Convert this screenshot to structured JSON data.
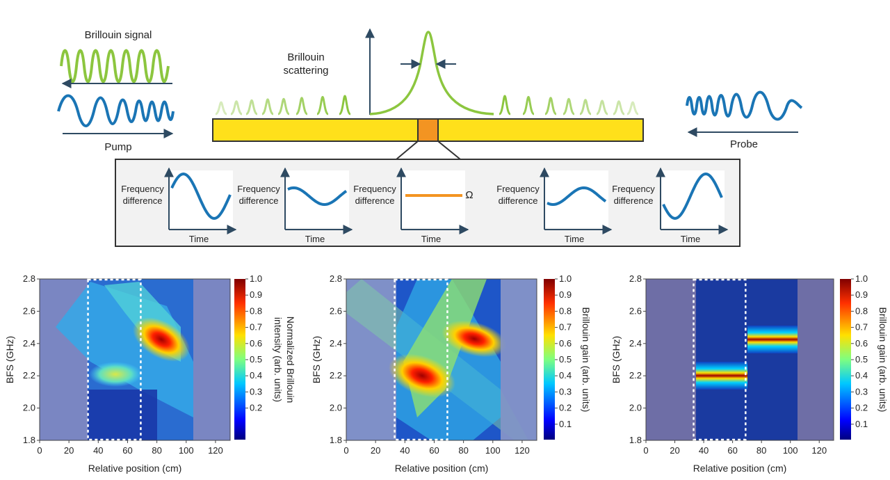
{
  "schematic": {
    "signal_label": "Brillouin signal",
    "pump_label": "Pump",
    "probe_label": "Probe",
    "scattering_label_1": "Brillouin",
    "scattering_label_2": "scattering",
    "colors": {
      "signal": "#8cc63f",
      "wave": "#1a75b5",
      "fiber": "#ffe01b",
      "hotspot": "#f39422",
      "arrow": "#2e4a62"
    }
  },
  "inset": {
    "panels": [
      {
        "ylabel_1": "Frequency",
        "ylabel_2": "difference",
        "xlabel": "Time",
        "curve": "sine-large"
      },
      {
        "ylabel_1": "Frequency",
        "ylabel_2": "difference",
        "xlabel": "Time",
        "curve": "sine-small"
      },
      {
        "ylabel_1": "Frequency",
        "ylabel_2": "difference",
        "xlabel": "Time",
        "curve": "flat",
        "flat_label": "Ω"
      },
      {
        "ylabel_1": "Frequency",
        "ylabel_2": "difference",
        "xlabel": "Time",
        "curve": "sine-small-inv"
      },
      {
        "ylabel_1": "Frequency",
        "ylabel_2": "difference",
        "xlabel": "Time",
        "curve": "sine-large-inv"
      }
    ]
  },
  "chart_data": [
    {
      "type": "heatmap",
      "xlabel": "Relative position (cm)",
      "ylabel": "BFS (GHz)",
      "colorbar_label_1": "Normalized Brillouin",
      "colorbar_label_2": "intensity (arb. units)",
      "xlim": [
        0,
        130
      ],
      "ylim": [
        1.8,
        2.8
      ],
      "xticks": [
        "0",
        "20",
        "40",
        "60",
        "80",
        "100",
        "120"
      ],
      "yticks": [
        "1.8",
        "2.0",
        "2.2",
        "2.4",
        "2.6",
        "2.8"
      ],
      "colorbar_ticks": [
        "0.2",
        "0.3",
        "0.4",
        "0.5",
        "0.6",
        "0.7",
        "0.8",
        "0.9",
        "1.0"
      ],
      "dashed_region_x": [
        33,
        69
      ],
      "peaks": [
        {
          "x": 85,
          "y": 2.42,
          "value": 1.0
        },
        {
          "x": 50,
          "y": 2.2,
          "value": 0.55
        }
      ]
    },
    {
      "type": "heatmap",
      "xlabel": "Relative position (cm)",
      "ylabel": "BFS (GHz)",
      "colorbar_label_1": "Brillouin gain (arb. units)",
      "xlim": [
        0,
        130
      ],
      "ylim": [
        1.8,
        2.8
      ],
      "xticks": [
        "0",
        "20",
        "40",
        "60",
        "80",
        "100",
        "120"
      ],
      "yticks": [
        "1.8",
        "2.0",
        "2.2",
        "2.4",
        "2.6",
        "2.8"
      ],
      "colorbar_ticks": [
        "0.1",
        "0.2",
        "0.3",
        "0.4",
        "0.5",
        "0.6",
        "0.7",
        "0.8",
        "0.9",
        "1.0"
      ],
      "dashed_region_x": [
        33,
        69
      ],
      "peaks": [
        {
          "x": 50,
          "y": 2.2,
          "value": 1.0
        },
        {
          "x": 85,
          "y": 2.42,
          "value": 1.0
        }
      ]
    },
    {
      "type": "heatmap",
      "xlabel": "Relative position (cm)",
      "ylabel": "BFS (GHz)",
      "colorbar_label_1": "Brillouin gain (arb. units)",
      "xlim": [
        0,
        130
      ],
      "ylim": [
        1.8,
        2.8
      ],
      "xticks": [
        "0",
        "20",
        "40",
        "60",
        "80",
        "100",
        "120"
      ],
      "yticks": [
        "1.8",
        "2.0",
        "2.2",
        "2.4",
        "2.6",
        "2.8"
      ],
      "colorbar_ticks": [
        "0.1",
        "0.2",
        "0.3",
        "0.4",
        "0.5",
        "0.6",
        "0.7",
        "0.8",
        "0.9",
        "1.0"
      ],
      "dashed_region_x": [
        33,
        69
      ],
      "peaks": [
        {
          "x": 50,
          "y": 2.19,
          "value": 1.0
        },
        {
          "x": 85,
          "y": 2.42,
          "value": 1.0
        }
      ]
    }
  ]
}
